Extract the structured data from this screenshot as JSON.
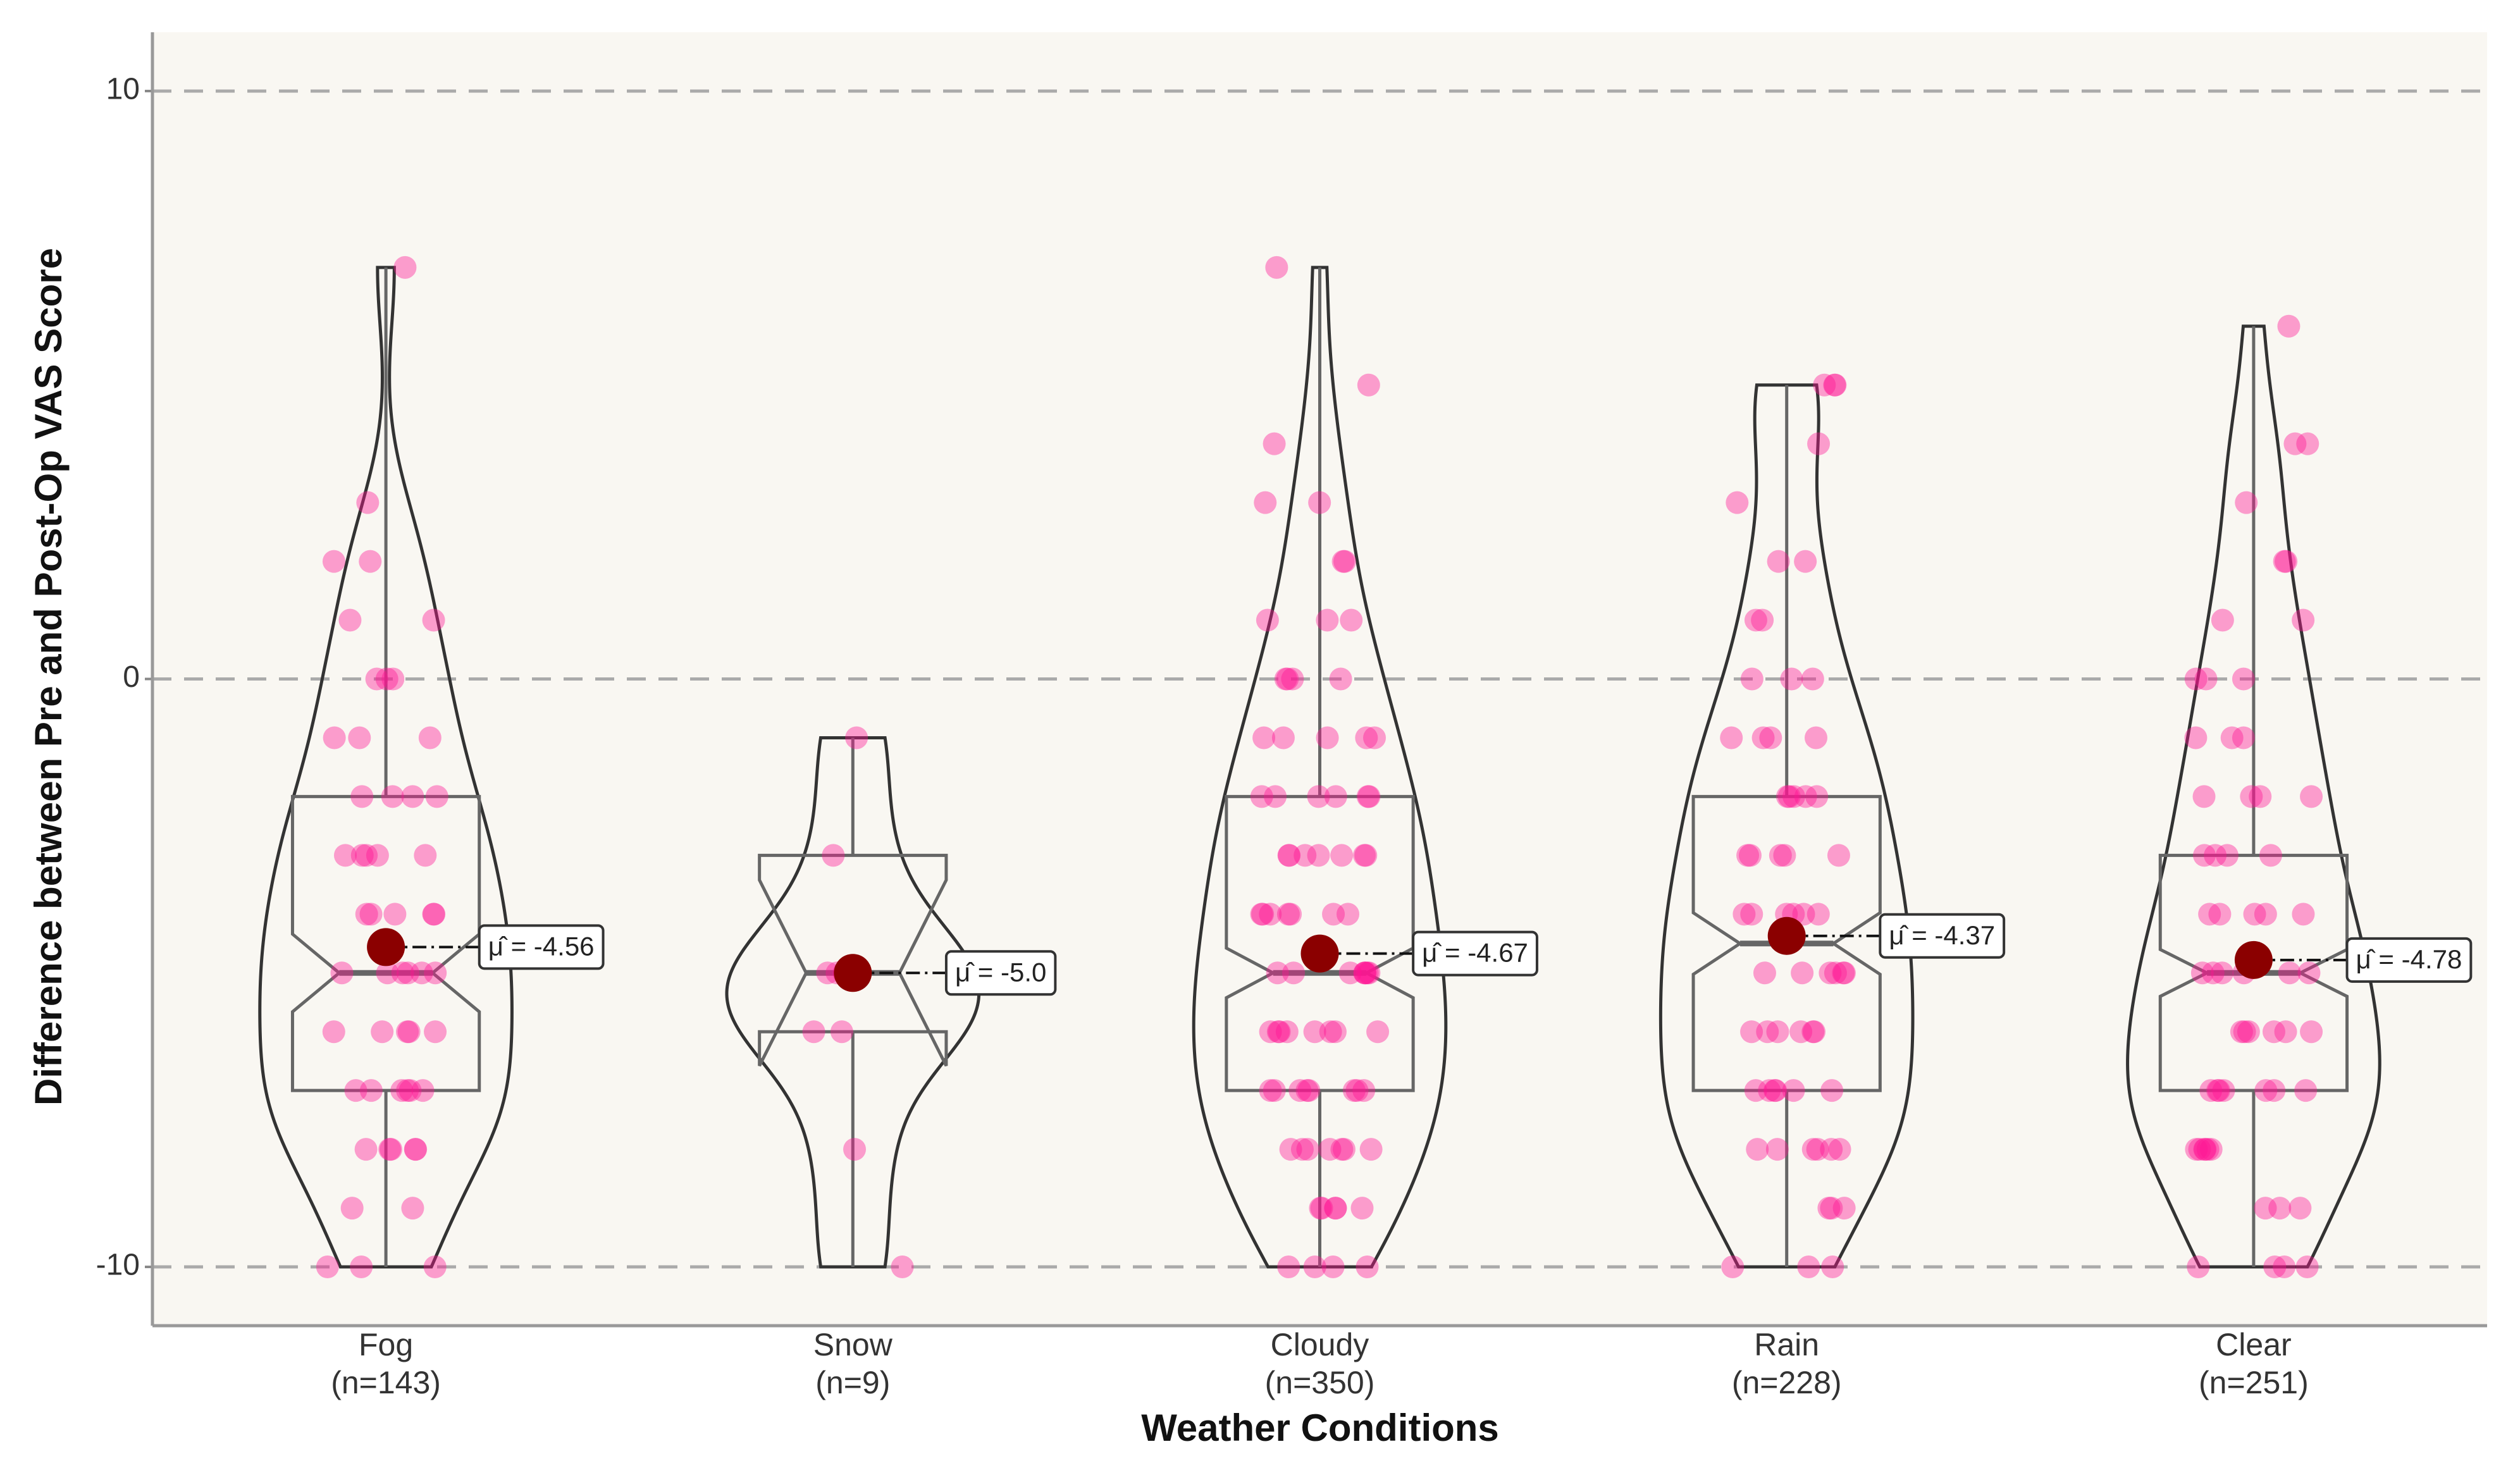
{
  "chart_data": {
    "type": "violin",
    "x_label": "Weather Conditions",
    "y_label": "Difference between Pre and Post-Op VAS Score",
    "categories": [
      "Fog",
      "Snow",
      "Cloudy",
      "Rain",
      "Clear"
    ],
    "n": [
      143,
      9,
      350,
      228,
      251
    ],
    "n_labels": [
      "(n=143)",
      "(n=9)",
      "(n=350)",
      "(n=228)",
      "(n=251)"
    ],
    "means": [
      -4.56,
      -5.0,
      -4.67,
      -4.37,
      -4.78
    ],
    "value_labels": [
      "μ̂ = -4.56",
      "μ̂ = -5.0",
      "μ̂ = -4.67",
      "μ̂ = -4.37",
      "μ̂ = -4.78"
    ],
    "q1": [
      -7,
      -6,
      -7,
      -7,
      -7
    ],
    "median": [
      -5,
      -5,
      -5,
      -4.5,
      -5
    ],
    "q3": [
      -2,
      -3,
      -2,
      -2,
      -3
    ],
    "whisker_low": [
      -10,
      -10,
      -10,
      -10,
      -10
    ],
    "whisker_high": [
      7,
      -1,
      7,
      5,
      6
    ],
    "points": [
      [
        -10,
        -10,
        -10,
        -9,
        -9,
        -8,
        -8,
        -8,
        -8,
        -8,
        -7,
        -7,
        -7,
        -7,
        -7,
        -7,
        -6,
        -6,
        -6,
        -6,
        -6,
        -5,
        -5,
        -5,
        -5,
        -5,
        -5,
        -4,
        -4,
        -4,
        -4,
        -4,
        -3,
        -3,
        -3,
        -3,
        -3,
        -2,
        -2,
        -2,
        -2,
        -1,
        -1,
        -1,
        0,
        0,
        0,
        1,
        1,
        2,
        2,
        3,
        7
      ],
      [
        -10,
        -8,
        -6,
        -6,
        -5,
        -5,
        -5,
        -3,
        -1
      ],
      [
        -10,
        -10,
        -10,
        -10,
        -9,
        -9,
        -9,
        -9,
        -9,
        -8,
        -8,
        -8,
        -8,
        -8,
        -8,
        -8,
        -7,
        -7,
        -7,
        -7,
        -7,
        -7,
        -7,
        -7,
        -6,
        -6,
        -6,
        -6,
        -6,
        -6,
        -6,
        -6,
        -5,
        -5,
        -5,
        -5,
        -5,
        -5,
        -5,
        -5,
        -4,
        -4,
        -4,
        -4,
        -4,
        -4,
        -4,
        -3,
        -3,
        -3,
        -3,
        -3,
        -3,
        -3,
        -2,
        -2,
        -2,
        -2,
        -2,
        -2,
        -1,
        -1,
        -1,
        -1,
        -1,
        0,
        0,
        0,
        0,
        1,
        1,
        1,
        2,
        2,
        3,
        3,
        4,
        5,
        7
      ],
      [
        -10,
        -10,
        -10,
        -9,
        -9,
        -9,
        -8,
        -8,
        -8,
        -8,
        -8,
        -8,
        -7,
        -7,
        -7,
        -7,
        -7,
        -7,
        -6,
        -6,
        -6,
        -6,
        -6,
        -6,
        -5,
        -5,
        -5,
        -5,
        -5,
        -5,
        -4,
        -4,
        -4,
        -4,
        -4,
        -4,
        -3,
        -3,
        -3,
        -3,
        -3,
        -2,
        -2,
        -2,
        -2,
        -2,
        -1,
        -1,
        -1,
        -1,
        0,
        0,
        0,
        1,
        1,
        2,
        2,
        3,
        4,
        5,
        5,
        5
      ],
      [
        -10,
        -10,
        -10,
        -10,
        -9,
        -9,
        -9,
        -8,
        -8,
        -8,
        -8,
        -8,
        -8,
        -7,
        -7,
        -7,
        -7,
        -7,
        -7,
        -7,
        -6,
        -6,
        -6,
        -6,
        -6,
        -6,
        -5,
        -5,
        -5,
        -5,
        -5,
        -5,
        -4,
        -4,
        -4,
        -4,
        -4,
        -3,
        -3,
        -3,
        -3,
        -2,
        -2,
        -2,
        -2,
        -1,
        -1,
        -1,
        0,
        0,
        0,
        1,
        1,
        2,
        2,
        3,
        4,
        4,
        6
      ]
    ],
    "point_color": "#ff1493",
    "mean_color": "#8b0000",
    "box_color": "#666666",
    "violin_color": "#333333",
    "background": "#f9f7f2",
    "ylim": [
      -11,
      11
    ],
    "yticks": [
      -10,
      0,
      10
    ],
    "grid": true
  }
}
